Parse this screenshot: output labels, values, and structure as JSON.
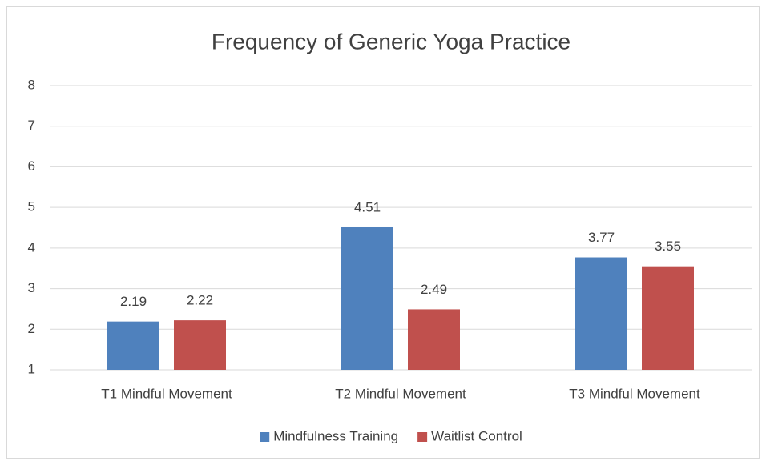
{
  "chart_data": {
    "type": "bar",
    "title": "Frequency of Generic Yoga Practice",
    "categories": [
      "T1 Mindful Movement",
      "T2 Mindful Movement",
      "T3 Mindful Movement"
    ],
    "series": [
      {
        "name": "Mindfulness Training",
        "color": "#4f81bd",
        "values": [
          2.19,
          4.51,
          3.77
        ]
      },
      {
        "name": "Waitlist Control",
        "color": "#c0504d",
        "values": [
          2.22,
          2.49,
          3.55
        ]
      }
    ],
    "ylim": [
      1,
      8
    ],
    "yticks": [
      1,
      2,
      3,
      4,
      5,
      6,
      7,
      8
    ],
    "grid": true,
    "legend": "bottom"
  }
}
